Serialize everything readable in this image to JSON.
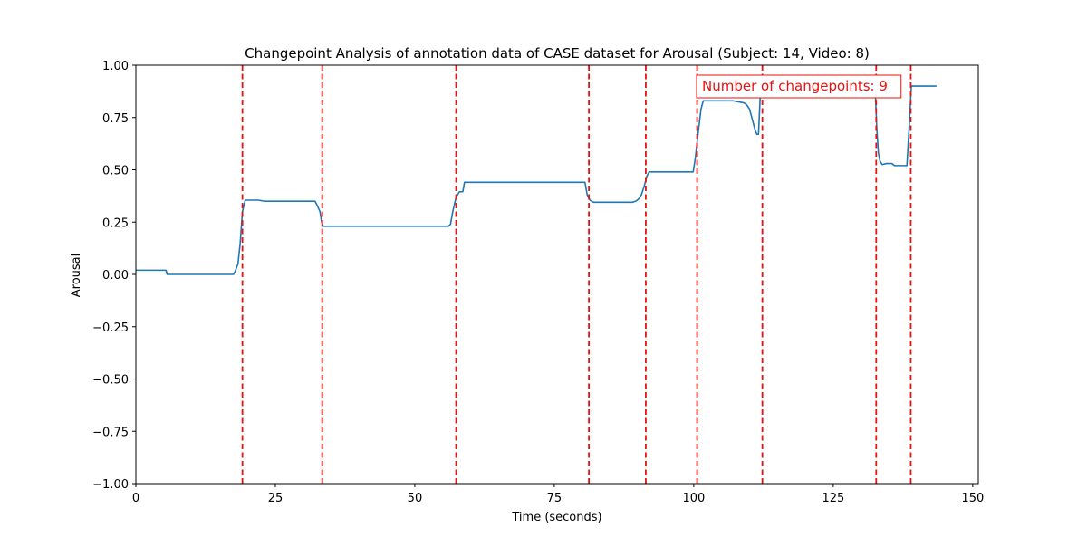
{
  "chart_data": {
    "type": "line",
    "title": "Changepoint Analysis of annotation data of CASE dataset for Arousal (Subject: 14, Video: 8)",
    "xlabel": "Time (seconds)",
    "ylabel": "Arousal",
    "xlim": [
      0,
      151
    ],
    "ylim": [
      -1.0,
      1.0
    ],
    "x_ticks": [
      0,
      25,
      50,
      75,
      100,
      125,
      150
    ],
    "y_ticks": [
      -1.0,
      -0.75,
      -0.5,
      -0.25,
      0.0,
      0.25,
      0.5,
      0.75,
      1.0
    ],
    "x_tick_labels": [
      "0",
      "25",
      "50",
      "75",
      "100",
      "125",
      "150"
    ],
    "y_tick_labels": [
      "−1.00",
      "−0.75",
      "−0.50",
      "−0.25",
      "0.00",
      "0.25",
      "0.50",
      "0.75",
      "1.00"
    ],
    "grid": false,
    "annotation_text": "Number of changepoints: 9",
    "colors": {
      "series": "#1f77b4",
      "changepoint": "#e8120f",
      "annotation": "#e8120f"
    },
    "series": [
      {
        "x": [
          0,
          5.4,
          5.6,
          17.5,
          17.8,
          18.3,
          18.7,
          19.1,
          19.6,
          20.0,
          22.0,
          23.0,
          26.0,
          29.0,
          32.1,
          32.5,
          33.0,
          33.3,
          33.6,
          34.0,
          56.0,
          56.4,
          56.8,
          57.4,
          58.0,
          58.6,
          58.9,
          59.4,
          80.5,
          80.9,
          81.4,
          82.0,
          89.0,
          89.6,
          90.1,
          90.6,
          91.1,
          91.6,
          92.0,
          92.5,
          99.9,
          100.3,
          100.8,
          101.3,
          101.7,
          102.2,
          107.0,
          108.0,
          109.0,
          109.5,
          110.0,
          110.5,
          110.7,
          111.0,
          111.3,
          111.6,
          112.0,
          112.5,
          132.5,
          132.8,
          133.1,
          133.4,
          133.8,
          134.5,
          135.5,
          136.0,
          138.2,
          138.6,
          139.0,
          139.5,
          143.5
        ],
        "y": [
          0.02,
          0.02,
          0.0,
          0.0,
          0.015,
          0.05,
          0.15,
          0.3,
          0.355,
          0.355,
          0.355,
          0.35,
          0.35,
          0.35,
          0.35,
          0.33,
          0.3,
          0.25,
          0.23,
          0.23,
          0.23,
          0.24,
          0.3,
          0.37,
          0.395,
          0.395,
          0.44,
          0.44,
          0.44,
          0.38,
          0.355,
          0.345,
          0.345,
          0.35,
          0.36,
          0.38,
          0.42,
          0.47,
          0.49,
          0.49,
          0.49,
          0.56,
          0.68,
          0.79,
          0.83,
          0.83,
          0.83,
          0.825,
          0.82,
          0.81,
          0.79,
          0.74,
          0.72,
          0.69,
          0.67,
          0.67,
          0.9,
          0.9,
          0.9,
          0.7,
          0.58,
          0.54,
          0.525,
          0.53,
          0.53,
          0.52,
          0.52,
          0.7,
          0.9,
          0.9,
          0.9
        ]
      }
    ],
    "changepoints": [
      19.1,
      33.4,
      57.4,
      81.2,
      91.4,
      100.6,
      112.3,
      132.7,
      138.9
    ]
  }
}
